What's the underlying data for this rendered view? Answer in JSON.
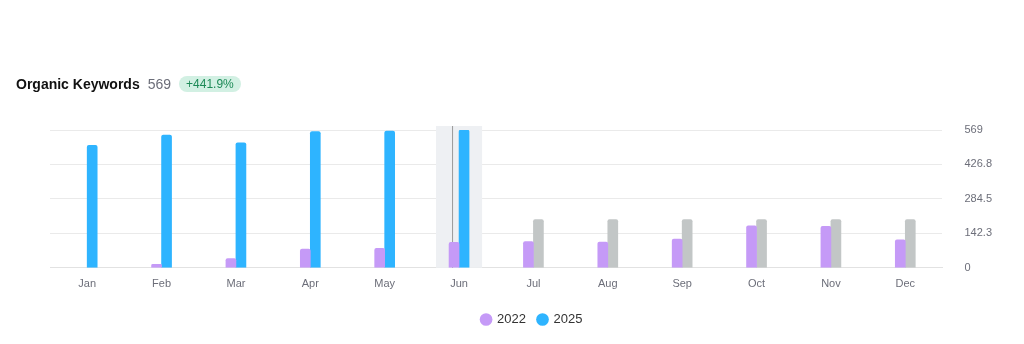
{
  "chart_data": {
    "type": "bar",
    "title": "Organic Keywords",
    "subtitle": "569",
    "annotations": [
      "+441.9%"
    ],
    "categories": [
      "Jan",
      "Feb",
      "Mar",
      "Apr",
      "May",
      "Jun",
      "Jul",
      "Aug",
      "Sep",
      "Oct",
      "Nov",
      "Dec"
    ],
    "series": [
      {
        "name": "2022",
        "color": "#c59af7",
        "values": [
          null,
          14,
          38,
          77,
          80,
          105,
          108,
          106,
          119,
          173,
          171,
          115
        ]
      },
      {
        "name": "2025",
        "color": "#2eb4ff",
        "colors": [
          "#2eb4ff",
          "#2eb4ff",
          "#2eb4ff",
          "#2eb4ff",
          "#2eb4ff",
          "#2eb4ff",
          "#c2c6c6",
          "#c2c6c6",
          "#c2c6c6",
          "#c2c6c6",
          "#c2c6c6",
          "#c2c6c6"
        ],
        "values": [
          506,
          548,
          516,
          562,
          565,
          569,
          199,
          199,
          199,
          199,
          199,
          199
        ]
      }
    ],
    "bands": [
      {
        "axis": "x",
        "from": "Jun",
        "to": "Jun",
        "color": "#eef0f3"
      }
    ],
    "ref_lines": [
      {
        "axis": "x",
        "value": "Jun",
        "color": "#9a9a9a"
      }
    ],
    "ylim": [
      0,
      569
    ],
    "yticks": [
      0,
      142.3,
      284.5,
      426.8,
      569
    ],
    "grid": "y",
    "legend": "bottom"
  }
}
